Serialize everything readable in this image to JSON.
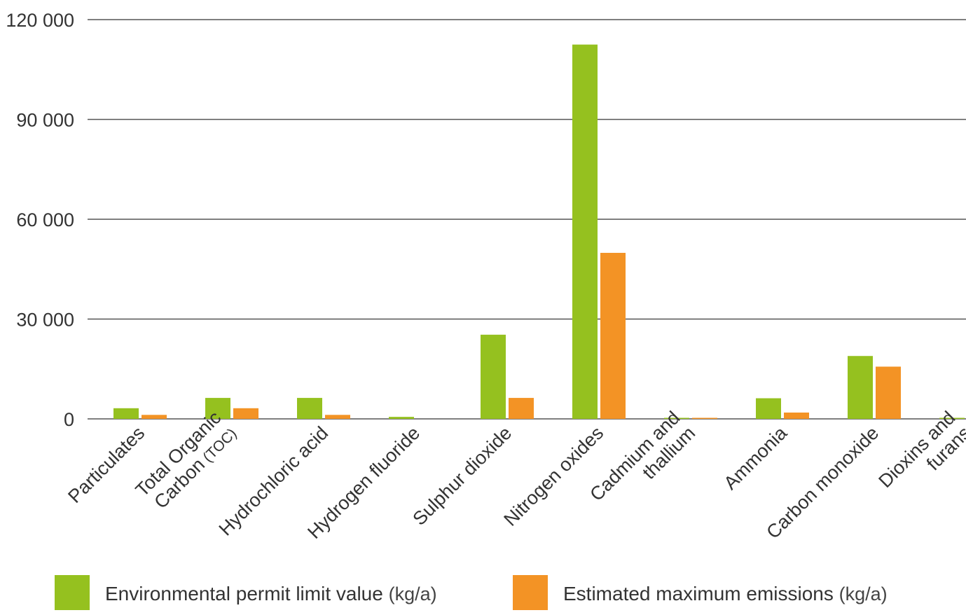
{
  "chart_data": {
    "type": "bar",
    "categories": [
      {
        "lines": [
          "Particulates"
        ]
      },
      {
        "lines": [
          "Total Organic",
          "Carbon"
        ],
        "suffix": " (TOC)"
      },
      {
        "lines": [
          "Hydrochloric acid"
        ]
      },
      {
        "lines": [
          "Hydrogen fluoride"
        ]
      },
      {
        "lines": [
          "Sulphur dioxide"
        ]
      },
      {
        "lines": [
          "Nitrogen oxides"
        ]
      },
      {
        "lines": [
          "Cadmium and",
          "thallium"
        ]
      },
      {
        "lines": [
          "Ammonia"
        ]
      },
      {
        "lines": [
          "Carbon monoxide"
        ]
      },
      {
        "lines": [
          "Dioxins and",
          "furans"
        ]
      }
    ],
    "series": [
      {
        "name": "Environmental permit limit value",
        "unit": "(kg/a)",
        "color": "#95c11f",
        "values": [
          3200,
          6300,
          6300,
          600,
          25300,
          112500,
          200,
          6200,
          18900,
          200
        ]
      },
      {
        "name": "Estimated maximum emissions",
        "unit": "(kg/a)",
        "color": "#f39325",
        "values": [
          1200,
          3200,
          1200,
          0,
          6300,
          49900,
          100,
          1900,
          15700,
          100
        ]
      }
    ],
    "ylim": [
      0,
      120000
    ],
    "yticks": [
      {
        "value": 0,
        "label": "0"
      },
      {
        "value": 30000,
        "label": "30 000"
      },
      {
        "value": 60000,
        "label": "60 000"
      },
      {
        "value": 90000,
        "label": "90 000"
      },
      {
        "value": 120000,
        "label": "120 000"
      }
    ],
    "grid": true,
    "legend_position": "bottom",
    "gridline_color": "#555555"
  }
}
